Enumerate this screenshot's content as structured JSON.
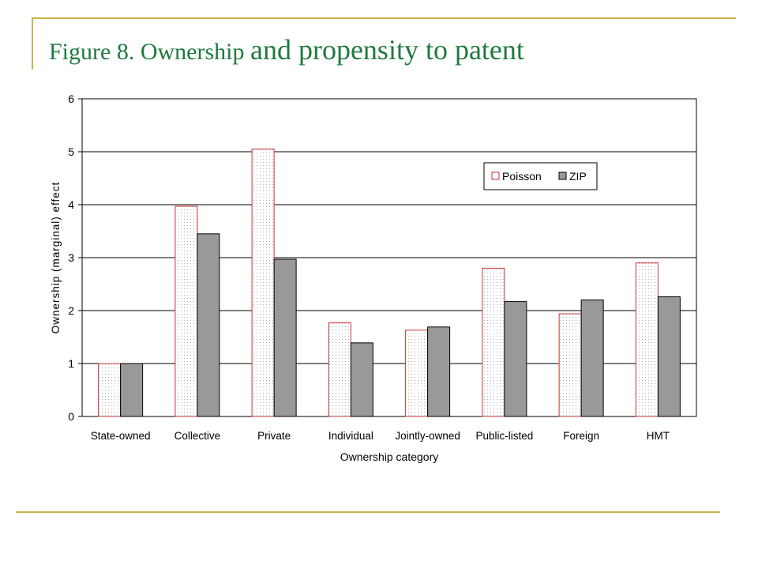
{
  "slide": {
    "title_part_1": "Figure 8. Ownership ",
    "title_part_2": "and propensity to patent",
    "title_color": "#1f7a3f",
    "rule_color": "#c8b44a"
  },
  "chart_data": {
    "type": "bar",
    "categories": [
      "State-owned",
      "Collective",
      "Private",
      "Individual",
      "Jointly-owned",
      "Public-listed",
      "Foreign",
      "HMT"
    ],
    "series": [
      {
        "name": "Poisson",
        "values": [
          1.0,
          3.97,
          5.05,
          1.77,
          1.63,
          2.8,
          1.94,
          2.9
        ],
        "style": "dotted",
        "edge_color": "#cc3333"
      },
      {
        "name": "ZIP",
        "values": [
          1.0,
          3.45,
          2.97,
          1.39,
          1.69,
          2.17,
          2.2,
          2.26
        ],
        "style": "solid",
        "fill_color": "#999999"
      }
    ],
    "xlabel": "Ownership category",
    "ylabel": "Ownership (marginal) effect",
    "ylim": [
      0,
      6
    ],
    "yticks": [
      "0",
      "1",
      "2",
      "3",
      "4",
      "5",
      "6"
    ],
    "grid": "horizontal",
    "legend_position": "top-right"
  }
}
